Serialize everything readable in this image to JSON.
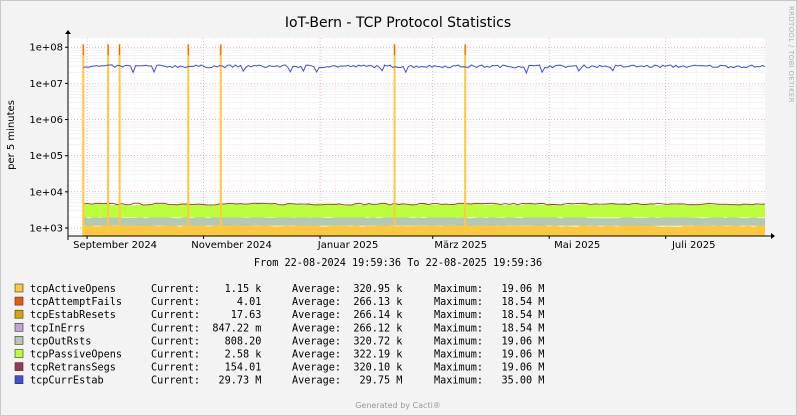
{
  "chart_data": {
    "type": "area",
    "title": "IoT-Bern - TCP Protocol Statistics",
    "ylabel": "per 5 minutes",
    "yscale": "log",
    "ylim": [
      600,
      180000000
    ],
    "y_ticks": [
      {
        "value": 1000,
        "label": "1e+03"
      },
      {
        "value": 10000,
        "label": "1e+04"
      },
      {
        "value": 100000,
        "label": "1e+05"
      },
      {
        "value": 1000000,
        "label": "1e+06"
      },
      {
        "value": 10000000,
        "label": "1e+07"
      },
      {
        "value": 100000000,
        "label": "1e+08"
      }
    ],
    "x_start": "2024-08-22",
    "x_end": "2025-08-22",
    "x_ticks": [
      {
        "date": "2024-09-01",
        "label": "September 2024"
      },
      {
        "date": "2024-11-01",
        "label": "November 2024"
      },
      {
        "date": "2025-01-01",
        "label": "Januar 2025"
      },
      {
        "date": "2025-03-01",
        "label": "März 2025"
      },
      {
        "date": "2025-05-01",
        "label": "Mai 2025"
      },
      {
        "date": "2025-07-01",
        "label": "Juli 2025"
      }
    ],
    "range_text": "From 22-08-2024 19:59:36 To 22-08-2025 19:59:36",
    "side_text": "RRDTOOL / TOBI OETIKER",
    "footer": "Generated by Cacti®",
    "grid": true,
    "legend_position": "bottom",
    "spike_dates": [
      "2024-08-30",
      "2024-09-12",
      "2024-09-18",
      "2024-10-24",
      "2024-11-10",
      "2025-02-09",
      "2025-03-18"
    ],
    "series": [
      {
        "name": "tcpActiveOpens",
        "color": "#FFC73B",
        "current": "1.15 k",
        "average": "320.95 k",
        "maximum": "19.06 M",
        "typical": 1150
      },
      {
        "name": "tcpAttemptFails",
        "color": "#EA5A03",
        "current": "4.01",
        "average": "266.13 k",
        "maximum": "18.54 M",
        "typical": 4
      },
      {
        "name": "tcpEstabResets",
        "color": "#D8A600",
        "current": "17.63",
        "average": "266.14 k",
        "maximum": "18.54 M",
        "typical": 18
      },
      {
        "name": "tcpInErrs",
        "color": "#C8A0D8",
        "current": "847.22 m",
        "average": "266.12 k",
        "maximum": "18.54 M",
        "typical": 0.85
      },
      {
        "name": "tcpOutRsts",
        "color": "#B4C8B4",
        "current": "808.20",
        "average": "320.72 k",
        "maximum": "19.06 M",
        "typical": 808
      },
      {
        "name": "tcpPassiveOpens",
        "color": "#BBFF3B",
        "current": "2.58 k",
        "average": "322.19 k",
        "maximum": "19.06 M",
        "typical": 2580
      },
      {
        "name": "tcpRetransSegs",
        "color": "#9E3454",
        "current": "154.01",
        "average": "320.10 k",
        "maximum": "19.06 M",
        "typical": 154
      },
      {
        "name": "tcpCurrEstab",
        "color": "#3F4FD8",
        "current": "29.73 M",
        "average": "29.75 M",
        "maximum": "35.00 M",
        "typical": 29730000
      }
    ]
  },
  "legend_labels": {
    "current": "Current:",
    "average": "Average:",
    "maximum": "Maximum:"
  }
}
